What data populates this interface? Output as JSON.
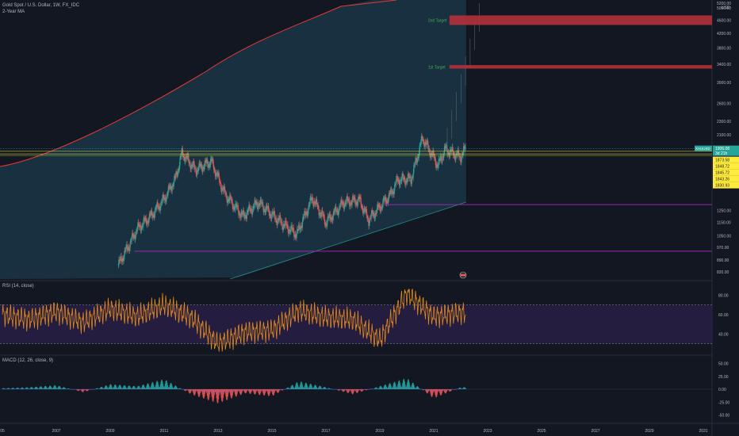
{
  "header": {
    "symbol_line": "Gold Spot / U.S. Dollar, 1W, FX_IDC",
    "indicator_line": "2-Year MA"
  },
  "price_axis": {
    "currency": "USD",
    "top_label": "5200.00",
    "ticks": [
      "5000.00",
      "4600.00",
      "4200.00",
      "3800.00",
      "3400.00",
      "3000.00",
      "2600.00",
      "2300.00",
      "2100.00",
      "1250.00",
      "1150.00",
      "1050.00",
      "970.00",
      "890.00",
      "820.00"
    ],
    "last_price_symbol": "XAUUSD",
    "last_price": "1906.08",
    "countdown": "3d 21h",
    "level_labels": [
      "1873.58",
      "1848.72",
      "1845.72",
      "1843.26",
      "1830.93"
    ]
  },
  "rsi_axis": {
    "ticks": [
      "80.00",
      "60.00",
      "40.00"
    ]
  },
  "macd_axis": {
    "ticks": [
      "50.00",
      "25.00",
      "0.00",
      "-25.00",
      "-50.00"
    ]
  },
  "time_axis": {
    "ticks": [
      "05",
      "2007",
      "2009",
      "2011",
      "2013",
      "2015",
      "2017",
      "2019",
      "2021",
      "2023",
      "2025",
      "2027",
      "2029",
      "2031"
    ]
  },
  "annotations": {
    "target2": "2nd Target",
    "target1": "1st Target"
  },
  "panels": {
    "rsi_label": "RSI (14, close)",
    "macd_label": "MACD (12, 26, close, 9)"
  },
  "colors": {
    "background": "#131722",
    "band_fill": "#1c3d52",
    "up_candle": "#26a69a",
    "down_candle": "#ef5350",
    "target_box": "#b2313a",
    "target_text": "#4caf50",
    "rsi_line": "#e08a1e",
    "rsi_band": "#2a1f48",
    "purple_line": "#9c27b0",
    "ma_line": "#e53935",
    "last_price_tag": "#26a69a",
    "level_tag": "#ffeb3b"
  },
  "chart_data": [
    {
      "type": "candlestick",
      "title": "Gold Spot / U.S. Dollar, 1W, FX_IDC",
      "y_scale": "log",
      "x": [
        "2010-01",
        "2010-07",
        "2011-01",
        "2011-06",
        "2011-09",
        "2012-03",
        "2012-10",
        "2013-04",
        "2013-12",
        "2014-07",
        "2015-03",
        "2015-12",
        "2016-07",
        "2017-01",
        "2017-09",
        "2018-04",
        "2018-08",
        "2019-06",
        "2019-09",
        "2020-03",
        "2020-08",
        "2021-03",
        "2021-06",
        "2022-01",
        "2022-03"
      ],
      "close": [
        1100,
        1200,
        1350,
        1550,
        1850,
        1650,
        1750,
        1400,
        1200,
        1320,
        1180,
        1060,
        1360,
        1150,
        1320,
        1340,
        1170,
        1400,
        1540,
        1550,
        2050,
        1700,
        1900,
        1800,
        1906
      ],
      "targets": [
        {
          "name": "2nd Target",
          "price_low": 4450,
          "price_high": 4750,
          "from": "2021-08",
          "to": "2031-06"
        },
        {
          "name": "1st Target",
          "price_low": 3300,
          "price_high": 3380,
          "from": "2021-08",
          "to": "2031-06"
        }
      ],
      "horizontal_lines": [
        1300,
        945
      ],
      "last_price": 1906.08,
      "levels": [
        1873.58,
        1848.72,
        1845.72,
        1843.26,
        1830.93
      ]
    },
    {
      "type": "line",
      "name": "RSI (14, close)",
      "x": [
        "2005",
        "2006",
        "2007",
        "2008",
        "2009",
        "2010",
        "2011",
        "2012",
        "2013",
        "2014",
        "2015",
        "2016",
        "2017",
        "2018",
        "2019",
        "2020",
        "2021",
        "2022"
      ],
      "values": [
        60,
        55,
        63,
        52,
        66,
        58,
        70,
        57,
        30,
        42,
        44,
        64,
        57,
        55,
        34,
        82,
        58,
        62
      ],
      "overbought": 70,
      "oversold": 30,
      "ylim": [
        20,
        90
      ]
    },
    {
      "type": "bar",
      "name": "MACD (12, 26, close, 9)",
      "x": [
        "2005",
        "2006",
        "2007",
        "2008",
        "2009",
        "2010",
        "2011",
        "2012",
        "2013",
        "2014",
        "2015",
        "2016",
        "2017",
        "2018",
        "2019",
        "2020",
        "2021",
        "2022"
      ],
      "values": [
        2,
        4,
        8,
        -6,
        10,
        6,
        20,
        -10,
        -28,
        -8,
        -14,
        16,
        4,
        -10,
        6,
        22,
        -18,
        4
      ],
      "ylim": [
        -60,
        60
      ]
    }
  ]
}
